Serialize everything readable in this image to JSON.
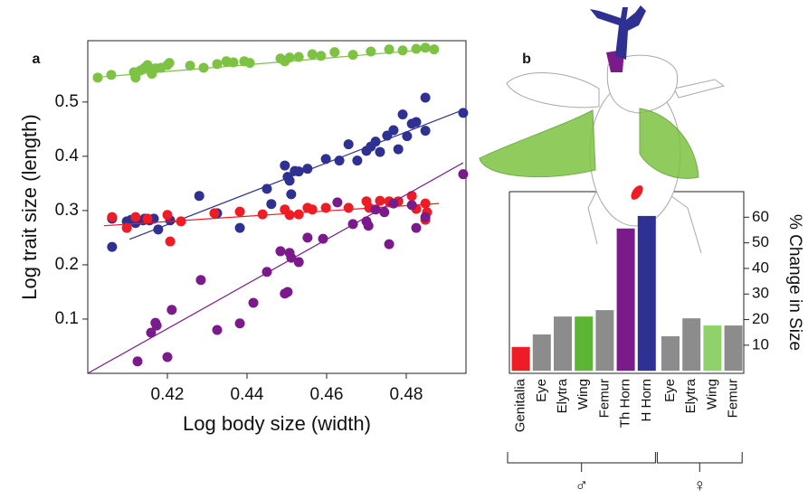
{
  "chart_data": [
    {
      "type": "scatter",
      "panel": "a",
      "xlabel": "Log body size (width)",
      "ylabel": "Log trait size (length)",
      "xlim": [
        0.4,
        0.495
      ],
      "ylim": [
        0,
        0.613
      ],
      "xticks": [
        0.42,
        0.44,
        0.46,
        0.48
      ],
      "yticks": [
        0.1,
        0.2,
        0.3,
        0.4,
        0.5
      ],
      "series": [
        {
          "color": "#7dc242",
          "x": [
            0.4025,
            0.4059,
            0.4116,
            0.412,
            0.4132,
            0.4143,
            0.415,
            0.4161,
            0.417,
            0.4184,
            0.42,
            0.4205,
            0.4257,
            0.4291,
            0.4325,
            0.4348,
            0.4366,
            0.4393,
            0.4407,
            0.4484,
            0.4495,
            0.4507,
            0.453,
            0.4564,
            0.4586,
            0.462,
            0.4666,
            0.4711,
            0.4757,
            0.4791,
            0.4825,
            0.4848,
            0.487
          ],
          "values": [
            0.545,
            0.55,
            0.555,
            0.545,
            0.558,
            0.563,
            0.568,
            0.552,
            0.562,
            0.563,
            0.568,
            0.572,
            0.567,
            0.563,
            0.57,
            0.575,
            0.573,
            0.575,
            0.572,
            0.58,
            0.575,
            0.582,
            0.583,
            0.588,
            0.585,
            0.592,
            0.587,
            0.593,
            0.597,
            0.595,
            0.598,
            0.6,
            0.597
          ],
          "fit_x": [
            0.4016,
            0.4877
          ],
          "fit_y": [
            0.545,
            0.598
          ]
        },
        {
          "color": "#2e3192",
          "x": [
            0.4061,
            0.4061,
            0.4098,
            0.4109,
            0.412,
            0.4139,
            0.4143,
            0.4155,
            0.4166,
            0.4177,
            0.4207,
            0.428,
            0.4325,
            0.4382,
            0.445,
            0.4461,
            0.4495,
            0.4502,
            0.4507,
            0.4511,
            0.452,
            0.453,
            0.4552,
            0.4598,
            0.4632,
            0.4655,
            0.4677,
            0.47,
            0.4711,
            0.4723,
            0.4734,
            0.4752,
            0.4768,
            0.478,
            0.4791,
            0.4802,
            0.4814,
            0.4825,
            0.4848,
            0.4848,
            0.4943
          ],
          "values": [
            0.285,
            0.233,
            0.28,
            0.283,
            0.277,
            0.282,
            0.285,
            0.282,
            0.285,
            0.265,
            0.282,
            0.327,
            0.295,
            0.268,
            0.34,
            0.312,
            0.383,
            0.362,
            0.355,
            0.33,
            0.373,
            0.372,
            0.377,
            0.395,
            0.392,
            0.422,
            0.392,
            0.41,
            0.418,
            0.427,
            0.408,
            0.438,
            0.448,
            0.413,
            0.477,
            0.437,
            0.46,
            0.463,
            0.508,
            0.447,
            0.48
          ],
          "fit_x": [
            0.4105,
            0.4934
          ],
          "fit_y": [
            0.247,
            0.483
          ]
        },
        {
          "color": "#ee1c24",
          "x": [
            0.4061,
            0.4098,
            0.412,
            0.415,
            0.42,
            0.4207,
            0.4234,
            0.4318,
            0.4382,
            0.4439,
            0.4495,
            0.4507,
            0.453,
            0.4552,
            0.4564,
            0.4598,
            0.4655,
            0.47,
            0.4707,
            0.4734,
            0.4757,
            0.478,
            0.4814,
            0.4825,
            0.4848,
            0.4848,
            0.4852
          ],
          "values": [
            0.288,
            0.268,
            0.288,
            0.285,
            0.292,
            0.243,
            0.28,
            0.295,
            0.298,
            0.293,
            0.302,
            0.292,
            0.293,
            0.305,
            0.302,
            0.305,
            0.305,
            0.317,
            0.305,
            0.318,
            0.317,
            0.317,
            0.327,
            0.303,
            0.313,
            0.283,
            0.297
          ],
          "fit_x": [
            0.4041,
            0.4882
          ],
          "fit_y": [
            0.272,
            0.313
          ]
        },
        {
          "color": "#7b1a8a",
          "x": [
            0.4125,
            0.4159,
            0.417,
            0.4173,
            0.42,
            0.4211,
            0.4284,
            0.4325,
            0.4382,
            0.4416,
            0.445,
            0.4484,
            0.4495,
            0.4502,
            0.4507,
            0.4511,
            0.453,
            0.4552,
            0.4591,
            0.4627,
            0.4666,
            0.47,
            0.4705,
            0.4723,
            0.4745,
            0.4757,
            0.4768,
            0.4814,
            0.4825,
            0.4848,
            0.4943
          ],
          "values": [
            0.022,
            0.075,
            0.093,
            0.088,
            0.03,
            0.117,
            0.172,
            0.08,
            0.092,
            0.13,
            0.187,
            0.225,
            0.147,
            0.15,
            0.222,
            0.213,
            0.205,
            0.25,
            0.248,
            0.315,
            0.275,
            0.28,
            0.272,
            0.302,
            0.297,
            0.238,
            0.313,
            0.31,
            0.268,
            0.288,
            0.367
          ],
          "fit_x": [
            0.4,
            0.4943
          ],
          "fit_y": [
            0,
            0.388
          ]
        }
      ]
    },
    {
      "type": "bar",
      "panel": "b",
      "ylabel": "% Change in Size",
      "ylim": [
        -1,
        70
      ],
      "yticks": [
        10,
        20,
        30,
        40,
        50,
        60
      ],
      "groups": [
        {
          "label": "♂",
          "categories": [
            "Genitalia",
            "Eye",
            "Elytra",
            "Wing",
            "Femur",
            "Th Horn",
            "H Horn"
          ],
          "values": [
            9.3,
            14.2,
            21.2,
            21.2,
            23.7,
            55.6,
            60.5
          ],
          "colors": [
            "#ee1c24",
            "#8c8c8c",
            "#8c8c8c",
            "#5db536",
            "#8c8c8c",
            "#7b1a8a",
            "#2e3192"
          ]
        },
        {
          "label": "♀",
          "categories": [
            "Eye",
            "Elytra",
            "Wing",
            "Femur"
          ],
          "values": [
            13.5,
            20.5,
            17.7,
            17.7
          ],
          "colors": [
            "#8c8c8c",
            "#8c8c8c",
            "#8fd16a",
            "#8c8c8c"
          ]
        }
      ]
    }
  ]
}
